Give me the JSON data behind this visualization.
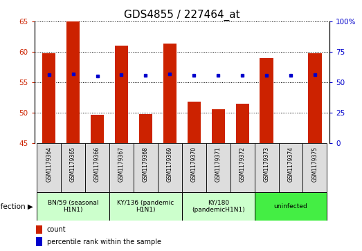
{
  "title": "GDS4855 / 227464_at",
  "samples": [
    "GSM1179364",
    "GSM1179365",
    "GSM1179366",
    "GSM1179367",
    "GSM1179368",
    "GSM1179369",
    "GSM1179370",
    "GSM1179371",
    "GSM1179372",
    "GSM1179373",
    "GSM1179374",
    "GSM1179375"
  ],
  "count_values": [
    59.8,
    65.0,
    49.7,
    61.0,
    49.8,
    61.3,
    51.8,
    50.6,
    51.5,
    59.0,
    45.0,
    59.8
  ],
  "percentile_values": [
    56.2,
    56.5,
    55.3,
    56.3,
    55.8,
    56.5,
    55.8,
    55.6,
    55.8,
    55.8,
    55.8,
    56.0
  ],
  "ylim_left": [
    45,
    65
  ],
  "ylim_right": [
    0,
    100
  ],
  "yticks_left": [
    45,
    50,
    55,
    60,
    65
  ],
  "yticks_right": [
    0,
    25,
    50,
    75,
    100
  ],
  "ytick_labels_right": [
    "0",
    "25",
    "50",
    "75",
    "100%"
  ],
  "bar_color": "#cc2200",
  "dot_color": "#0000cc",
  "groups": [
    {
      "label": "BN/59 (seasonal\nH1N1)",
      "start": 0,
      "end": 3,
      "color": "#ccffcc"
    },
    {
      "label": "KY/136 (pandemic\nH1N1)",
      "start": 3,
      "end": 6,
      "color": "#ccffcc"
    },
    {
      "label": "KY/180\n(pandemicH1N1)",
      "start": 6,
      "end": 9,
      "color": "#ccffcc"
    },
    {
      "label": "uninfected",
      "start": 9,
      "end": 12,
      "color": "#44ee44"
    }
  ],
  "infection_label": "infection ▶",
  "legend_count_label": "count",
  "legend_percentile_label": "percentile rank within the sample",
  "title_fontsize": 11,
  "tick_fontsize": 7.5,
  "sample_cell_color": "#dddddd",
  "bar_width": 0.55
}
